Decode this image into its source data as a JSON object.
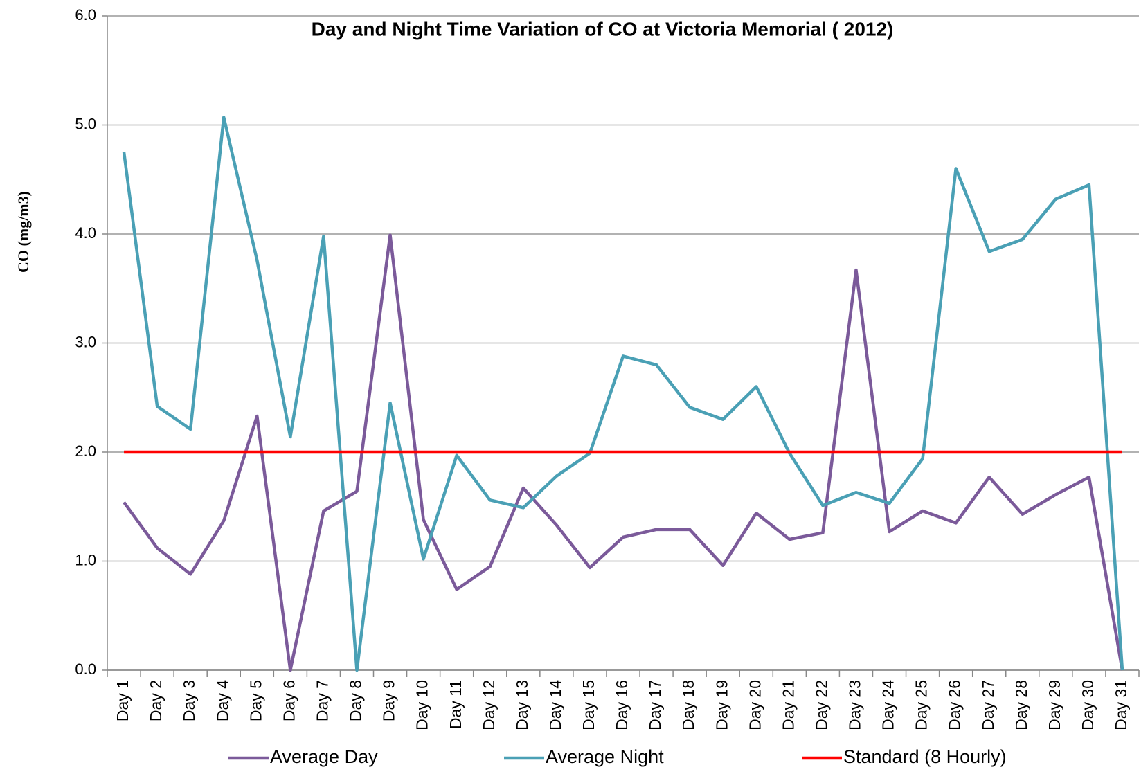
{
  "chart_data": {
    "type": "line",
    "title": "Day and Night Time Variation of CO at Victoria Memorial ( 2012)",
    "y_label": "CO (mg/m3)",
    "categories": [
      "Day 1",
      "Day 2",
      "Day 3",
      "Day 4",
      "Day 5",
      "Day 6",
      "Day 7",
      "Day 8",
      "Day 9",
      "Day 10",
      "Day 11",
      "Day 12",
      "Day 13",
      "Day 14",
      "Day 15",
      "Day 16",
      "Day 17",
      "Day 18",
      "Day 19",
      "Day 20",
      "Day 21",
      "Day 22",
      "Day 23",
      "Day 24",
      "Day 25",
      "Day 26",
      "Day 27",
      "Day 28",
      "Day 29",
      "Day 30",
      "Day 31"
    ],
    "series": [
      {
        "name": "Average Day",
        "color": "#7b5a9a",
        "values": [
          1.54,
          1.12,
          0.88,
          1.37,
          2.33,
          0.0,
          1.46,
          1.64,
          3.99,
          1.38,
          0.74,
          0.95,
          1.67,
          1.33,
          0.94,
          1.22,
          1.29,
          1.29,
          0.96,
          1.44,
          1.2,
          1.26,
          3.67,
          1.27,
          1.46,
          1.35,
          1.77,
          1.43,
          1.61,
          1.77,
          0.0
        ]
      },
      {
        "name": "Average Night",
        "color": "#4aa0b5",
        "values": [
          4.75,
          2.42,
          2.21,
          5.07,
          3.76,
          2.14,
          3.98,
          0.0,
          2.45,
          1.02,
          1.97,
          1.56,
          1.49,
          1.78,
          1.99,
          2.88,
          2.8,
          2.41,
          2.3,
          2.6,
          1.99,
          1.51,
          1.63,
          1.53,
          1.94,
          4.6,
          3.84,
          3.95,
          4.32,
          4.45,
          0.0
        ]
      },
      {
        "name": "Standard (8 Hourly)",
        "color": "#ff0000",
        "values": [
          2,
          2,
          2,
          2,
          2,
          2,
          2,
          2,
          2,
          2,
          2,
          2,
          2,
          2,
          2,
          2,
          2,
          2,
          2,
          2,
          2,
          2,
          2,
          2,
          2,
          2,
          2,
          2,
          2,
          2,
          2
        ]
      }
    ],
    "ylim": [
      0,
      6
    ],
    "yticks": [
      {
        "value": 0,
        "label": "0.0"
      },
      {
        "value": 1,
        "label": "1.0"
      },
      {
        "value": 2,
        "label": "2.0"
      },
      {
        "value": 3,
        "label": "3.0"
      },
      {
        "value": 4,
        "label": "4.0"
      },
      {
        "value": 5,
        "label": "5.0"
      },
      {
        "value": 6,
        "label": "6.0"
      }
    ],
    "grid": true,
    "legend": "bottom"
  }
}
